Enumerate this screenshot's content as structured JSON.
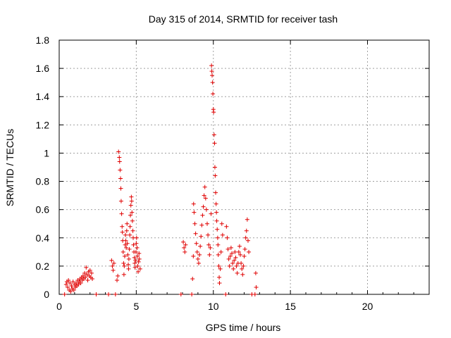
{
  "chart_data": {
    "type": "scatter",
    "title": "Day 315 of 2014, SRMTID for receiver tash",
    "xlabel": "GPS time / hours",
    "ylabel": "SRMTID / TECUs",
    "xlim": [
      0,
      24
    ],
    "ylim": [
      0,
      1.8
    ],
    "xticks": [
      0,
      5,
      10,
      15,
      20
    ],
    "xtick_labels": [
      "0",
      "5",
      "10",
      "15",
      "20"
    ],
    "yticks": [
      0,
      0.2,
      0.4,
      0.6,
      0.8,
      1,
      1.2,
      1.4,
      1.6,
      1.8
    ],
    "ytick_labels": [
      "0",
      "0.2",
      "0.4",
      "0.6",
      "0.8",
      "1",
      "1.2",
      "1.4",
      "1.6",
      "1.8"
    ],
    "grid": true,
    "marker": "+",
    "color": "#e00000",
    "series": [
      {
        "name": "SRMTID",
        "points": [
          [
            0.35,
            0.0
          ],
          [
            0.45,
            0.07
          ],
          [
            0.5,
            0.09
          ],
          [
            0.55,
            0.05
          ],
          [
            0.6,
            0.1
          ],
          [
            0.65,
            0.03
          ],
          [
            0.7,
            0.08
          ],
          [
            0.75,
            0.02
          ],
          [
            0.8,
            0.06
          ],
          [
            0.85,
            0.04
          ],
          [
            0.9,
            0.09
          ],
          [
            0.95,
            0.03
          ],
          [
            1.0,
            0.07
          ],
          [
            1.05,
            0.05
          ],
          [
            1.1,
            0.08
          ],
          [
            1.15,
            0.06
          ],
          [
            1.2,
            0.1
          ],
          [
            1.25,
            0.07
          ],
          [
            1.3,
            0.09
          ],
          [
            1.35,
            0.11
          ],
          [
            1.4,
            0.08
          ],
          [
            1.45,
            0.12
          ],
          [
            1.5,
            0.1
          ],
          [
            1.55,
            0.13
          ],
          [
            1.6,
            0.11
          ],
          [
            1.65,
            0.15
          ],
          [
            1.7,
            0.12
          ],
          [
            1.75,
            0.19
          ],
          [
            1.8,
            0.14
          ],
          [
            1.85,
            0.1
          ],
          [
            1.9,
            0.16
          ],
          [
            1.95,
            0.13
          ],
          [
            2.0,
            0.17
          ],
          [
            2.05,
            0.12
          ],
          [
            2.1,
            0.15
          ],
          [
            2.15,
            0.11
          ],
          [
            2.4,
            0.0
          ],
          [
            3.2,
            0.0
          ],
          [
            3.4,
            0.24
          ],
          [
            3.45,
            0.2
          ],
          [
            3.5,
            0.17
          ],
          [
            3.55,
            0.22
          ],
          [
            3.65,
            0.0
          ],
          [
            3.75,
            0.1
          ],
          [
            3.8,
            0.13
          ],
          [
            3.85,
            1.01
          ],
          [
            3.9,
            0.97
          ],
          [
            3.92,
            0.94
          ],
          [
            3.95,
            0.88
          ],
          [
            3.98,
            0.82
          ],
          [
            4.0,
            0.75
          ],
          [
            4.02,
            0.66
          ],
          [
            4.05,
            0.57
          ],
          [
            4.08,
            0.48
          ],
          [
            4.1,
            0.44
          ],
          [
            4.12,
            0.38
          ],
          [
            4.15,
            0.3
          ],
          [
            4.18,
            0.22
          ],
          [
            4.2,
            0.14
          ],
          [
            4.22,
            0.2
          ],
          [
            4.25,
            0.27
          ],
          [
            4.28,
            0.35
          ],
          [
            4.3,
            0.42
          ],
          [
            4.32,
            0.38
          ],
          [
            4.35,
            0.33
          ],
          [
            4.38,
            0.45
          ],
          [
            4.4,
            0.5
          ],
          [
            4.42,
            0.36
          ],
          [
            4.45,
            0.28
          ],
          [
            4.48,
            0.21
          ],
          [
            4.5,
            0.18
          ],
          [
            4.52,
            0.25
          ],
          [
            4.55,
            0.32
          ],
          [
            4.58,
            0.42
          ],
          [
            4.6,
            0.48
          ],
          [
            4.62,
            0.56
          ],
          [
            4.65,
            0.63
          ],
          [
            4.68,
            0.69
          ],
          [
            4.7,
            0.66
          ],
          [
            4.72,
            0.58
          ],
          [
            4.75,
            0.52
          ],
          [
            4.78,
            0.45
          ],
          [
            4.8,
            0.4
          ],
          [
            4.82,
            0.35
          ],
          [
            4.85,
            0.3
          ],
          [
            4.88,
            0.26
          ],
          [
            4.9,
            0.22
          ],
          [
            4.92,
            0.19
          ],
          [
            4.95,
            0.24
          ],
          [
            4.98,
            0.3
          ],
          [
            5.0,
            0.36
          ],
          [
            5.02,
            0.4
          ],
          [
            5.05,
            0.33
          ],
          [
            5.08,
            0.27
          ],
          [
            5.1,
            0.2
          ],
          [
            5.12,
            0.16
          ],
          [
            5.15,
            0.23
          ],
          [
            5.18,
            0.29
          ],
          [
            5.2,
            0.25
          ],
          [
            5.25,
            0.18
          ],
          [
            7.9,
            0.0
          ],
          [
            8.05,
            0.37
          ],
          [
            8.1,
            0.33
          ],
          [
            8.15,
            0.3
          ],
          [
            8.2,
            0.35
          ],
          [
            8.6,
            0.0
          ],
          [
            8.65,
            0.11
          ],
          [
            8.7,
            0.27
          ],
          [
            8.72,
            0.64
          ],
          [
            8.75,
            0.58
          ],
          [
            8.8,
            0.5
          ],
          [
            8.85,
            0.43
          ],
          [
            8.9,
            0.36
          ],
          [
            8.95,
            0.3
          ],
          [
            9.0,
            0.25
          ],
          [
            9.05,
            0.22
          ],
          [
            9.1,
            0.28
          ],
          [
            9.15,
            0.34
          ],
          [
            9.2,
            0.41
          ],
          [
            9.25,
            0.49
          ],
          [
            9.3,
            0.56
          ],
          [
            9.35,
            0.62
          ],
          [
            9.4,
            0.7
          ],
          [
            9.45,
            0.76
          ],
          [
            9.5,
            0.68
          ],
          [
            9.55,
            0.6
          ],
          [
            9.6,
            0.5
          ],
          [
            9.65,
            0.42
          ],
          [
            9.7,
            0.35
          ],
          [
            9.75,
            0.28
          ],
          [
            9.8,
            0.33
          ],
          [
            9.85,
            0.57
          ],
          [
            9.88,
            1.62
          ],
          [
            9.9,
            1.58
          ],
          [
            9.92,
            1.55
          ],
          [
            9.95,
            1.5
          ],
          [
            9.97,
            1.42
          ],
          [
            10.0,
            1.31
          ],
          [
            10.02,
            1.29
          ],
          [
            10.05,
            1.13
          ],
          [
            10.08,
            1.07
          ],
          [
            10.1,
            0.9
          ],
          [
            10.12,
            0.84
          ],
          [
            10.15,
            0.72
          ],
          [
            10.18,
            0.64
          ],
          [
            10.2,
            0.58
          ],
          [
            10.22,
            0.52
          ],
          [
            10.25,
            0.46
          ],
          [
            10.28,
            0.4
          ],
          [
            10.3,
            0.35
          ],
          [
            10.32,
            0.28
          ],
          [
            10.35,
            0.2
          ],
          [
            10.38,
            0.12
          ],
          [
            10.4,
            0.08
          ],
          [
            10.45,
            0.18
          ],
          [
            10.5,
            0.3
          ],
          [
            10.55,
            0.5
          ],
          [
            10.6,
            0.42
          ],
          [
            10.8,
            0.0
          ],
          [
            10.85,
            0.48
          ],
          [
            10.9,
            0.4
          ],
          [
            10.95,
            0.32
          ],
          [
            11.0,
            0.25
          ],
          [
            11.05,
            0.2
          ],
          [
            11.1,
            0.27
          ],
          [
            11.15,
            0.33
          ],
          [
            11.2,
            0.29
          ],
          [
            11.25,
            0.22
          ],
          [
            11.3,
            0.18
          ],
          [
            11.35,
            0.24
          ],
          [
            11.4,
            0.3
          ],
          [
            11.45,
            0.26
          ],
          [
            11.5,
            0.2
          ],
          [
            11.55,
            0.15
          ],
          [
            11.6,
            0.22
          ],
          [
            11.65,
            0.3
          ],
          [
            11.7,
            0.34
          ],
          [
            11.75,
            0.28
          ],
          [
            11.8,
            0.22
          ],
          [
            11.85,
            0.18
          ],
          [
            11.9,
            0.14
          ],
          [
            11.95,
            0.2
          ],
          [
            12.0,
            0.27
          ],
          [
            12.05,
            0.32
          ],
          [
            12.1,
            0.4
          ],
          [
            12.15,
            0.45
          ],
          [
            12.2,
            0.53
          ],
          [
            12.25,
            0.38
          ],
          [
            12.3,
            0.3
          ],
          [
            12.5,
            0.0
          ],
          [
            12.7,
            0.0
          ],
          [
            12.75,
            0.15
          ],
          [
            12.78,
            0.05
          ]
        ]
      }
    ]
  }
}
